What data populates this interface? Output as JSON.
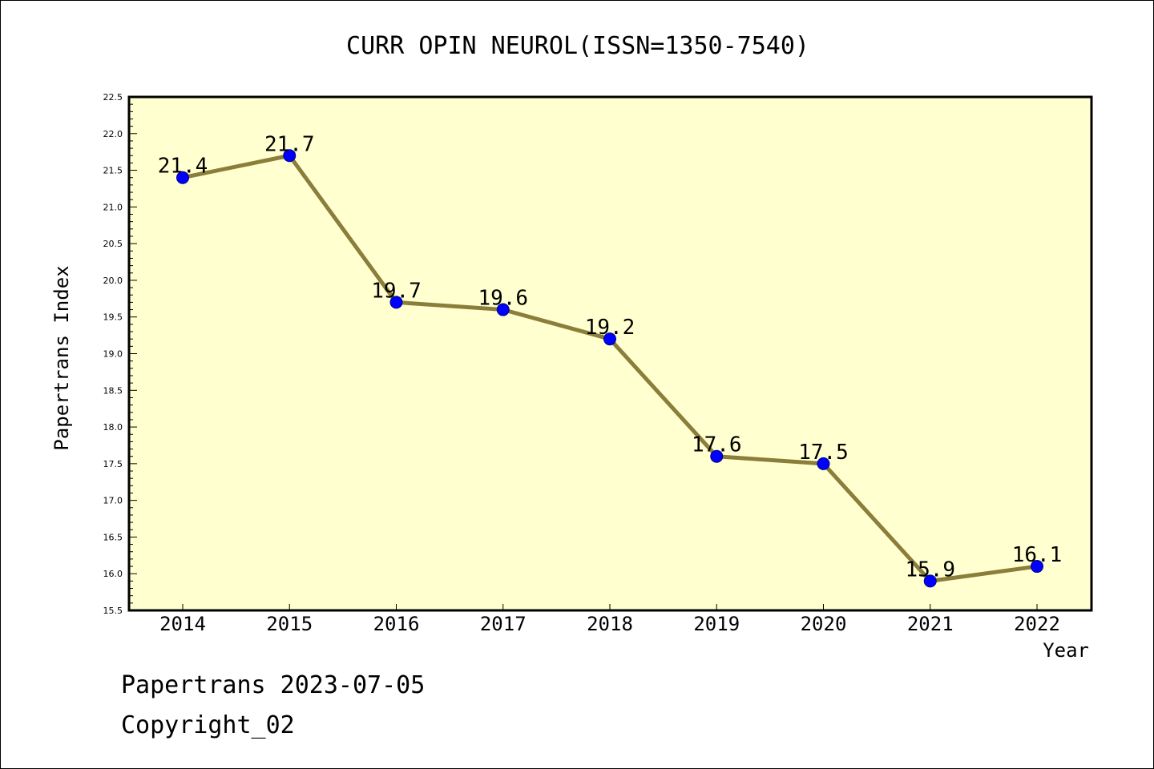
{
  "chart_data": {
    "type": "line",
    "title": "CURR OPIN NEUROL(ISSN=1350-7540)",
    "xlabel": "Year",
    "ylabel": "Papertrans Index",
    "categories": [
      "2014",
      "2015",
      "2016",
      "2017",
      "2018",
      "2019",
      "2020",
      "2021",
      "2022"
    ],
    "values": [
      21.4,
      21.7,
      19.7,
      19.6,
      19.2,
      17.6,
      17.5,
      15.9,
      16.1
    ],
    "value_labels": [
      "21.4",
      "21.7",
      "19.7",
      "19.6",
      "19.2",
      "17.6",
      "17.5",
      "15.9",
      "16.1"
    ],
    "ylim": [
      15.5,
      22.5
    ],
    "yticks": [
      "15.5",
      "16.0",
      "16.5",
      "17.0",
      "17.5",
      "18.0",
      "18.5",
      "19.0",
      "19.5",
      "20.0",
      "20.5",
      "21.0",
      "21.5",
      "22.0",
      "22.5"
    ],
    "grid": false,
    "colors": {
      "plot_background": "#ffffd0",
      "line": "#8b7d3a",
      "marker": "#0000ff"
    }
  },
  "footer": {
    "line1": "Papertrans 2023-07-05",
    "line2": "Copyright_02"
  }
}
